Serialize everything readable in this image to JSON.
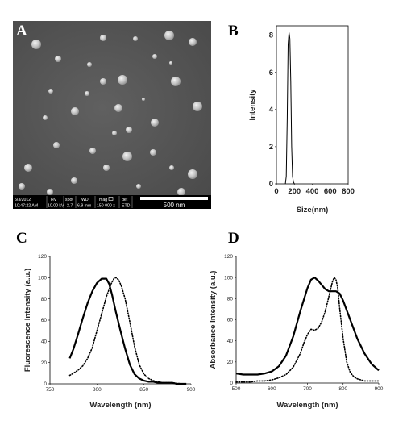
{
  "panels": {
    "A": {
      "letter": "A",
      "sem_info": {
        "date": "5/3/2012",
        "time": "10:47:22 AM",
        "hv_label": "HV",
        "hv": "10.00 kV",
        "spot_label": "spot",
        "spot": "2.7",
        "wd_label": "WD",
        "wd": "6.9 mm",
        "mag_label": "mag",
        "mag": "150 000 x",
        "det_label": "det",
        "det": "ETD",
        "scale_bar": "500 nm"
      }
    },
    "B": {
      "letter": "B"
    },
    "C": {
      "letter": "C"
    },
    "D": {
      "letter": "D"
    }
  },
  "chart_data": [
    {
      "panel": "B",
      "type": "line",
      "xlabel": "Size(nm)",
      "ylabel": "Intensity",
      "xlim": [
        0,
        800
      ],
      "ylim": [
        0,
        8.5
      ],
      "xticks": [
        0,
        200,
        400,
        600,
        800
      ],
      "yticks": [
        0,
        2,
        4,
        6,
        8
      ],
      "series": [
        {
          "x": [
            100,
            110,
            120,
            130,
            140,
            150,
            160,
            170,
            180,
            190,
            200
          ],
          "y": [
            0,
            0.4,
            3.5,
            7.5,
            8.15,
            7.8,
            5.5,
            2.0,
            0.4,
            0.1,
            0
          ]
        }
      ]
    },
    {
      "panel": "C",
      "type": "line",
      "xlabel": "Wavelength (nm)",
      "ylabel": "Fluorescence Intensity (a.u.)",
      "xlim": [
        750,
        900
      ],
      "ylim": [
        0,
        120
      ],
      "xticks": [
        750,
        800,
        850,
        900
      ],
      "yticks": [
        0,
        20,
        40,
        60,
        80,
        100,
        120
      ],
      "series": [
        {
          "style": "solid",
          "x": [
            771,
            775,
            780,
            785,
            790,
            795,
            800,
            805,
            810,
            813,
            816,
            820,
            825,
            830,
            835,
            840,
            845,
            850,
            855,
            860,
            865,
            870,
            875,
            880,
            885,
            890,
            895
          ],
          "y": [
            24,
            33,
            47,
            62,
            76,
            87,
            95,
            99,
            99,
            94,
            84,
            68,
            50,
            33,
            18,
            9,
            5,
            3,
            2,
            2,
            1,
            1,
            1,
            1,
            0,
            0,
            0
          ]
        },
        {
          "style": "dotted",
          "x": [
            771,
            775,
            780,
            785,
            790,
            795,
            800,
            805,
            810,
            815,
            818,
            820,
            823,
            826,
            830,
            835,
            840,
            845,
            850,
            855,
            860,
            870,
            880,
            890
          ],
          "y": [
            8,
            10,
            13,
            17,
            24,
            34,
            50,
            66,
            82,
            94,
            99,
            100,
            98,
            92,
            80,
            58,
            35,
            18,
            9,
            5,
            3,
            1,
            1,
            0
          ]
        }
      ]
    },
    {
      "panel": "D",
      "type": "line",
      "xlabel": "Wavelength (nm)",
      "ylabel": "Absorbance Intensity (a.u.)",
      "xlim": [
        500,
        900
      ],
      "ylim": [
        0,
        120
      ],
      "xticks": [
        500,
        600,
        700,
        800,
        900
      ],
      "yticks": [
        0,
        20,
        40,
        60,
        80,
        100,
        120
      ],
      "series": [
        {
          "style": "solid",
          "x": [
            500,
            520,
            540,
            560,
            580,
            600,
            620,
            640,
            660,
            680,
            700,
            710,
            720,
            730,
            740,
            750,
            760,
            770,
            780,
            790,
            800,
            820,
            840,
            860,
            880,
            900
          ],
          "y": [
            9,
            8,
            8,
            8,
            9,
            11,
            16,
            26,
            44,
            68,
            90,
            98,
            100,
            97,
            93,
            89,
            87,
            87,
            87,
            85,
            78,
            60,
            42,
            28,
            18,
            12
          ]
        },
        {
          "style": "dotted",
          "x": [
            500,
            520,
            540,
            560,
            580,
            600,
            620,
            640,
            660,
            680,
            690,
            700,
            710,
            720,
            730,
            740,
            750,
            760,
            770,
            775,
            780,
            785,
            790,
            800,
            810,
            820,
            830,
            840,
            850,
            860,
            880,
            900
          ],
          "y": [
            1,
            1,
            1,
            2,
            2,
            3,
            5,
            8,
            15,
            28,
            38,
            46,
            51,
            50,
            52,
            58,
            68,
            82,
            96,
            100,
            98,
            90,
            72,
            42,
            20,
            10,
            6,
            4,
            3,
            2,
            2,
            2
          ]
        }
      ]
    }
  ]
}
